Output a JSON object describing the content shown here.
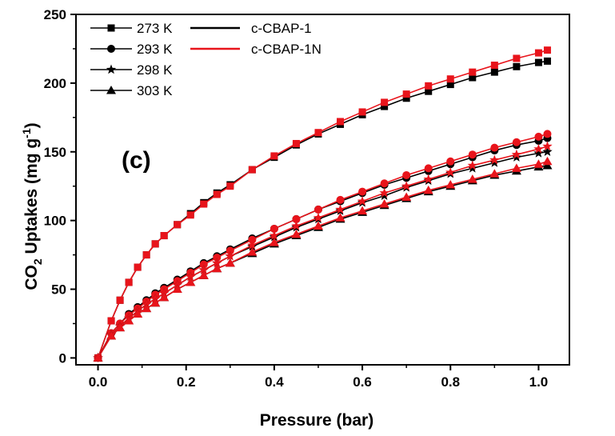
{
  "chart_data": {
    "type": "line",
    "title": "",
    "panel_label": "(c)",
    "xlabel": "Pressure (bar)",
    "ylabel_main": "CO",
    "ylabel_sub": "2",
    "ylabel_rest": " Uptakes (mg g",
    "ylabel_sup": "-1",
    "ylabel_end": ")",
    "xlim": [
      -0.05,
      1.07
    ],
    "ylim": [
      -5,
      250
    ],
    "xticks": [
      0.0,
      0.2,
      0.4,
      0.6,
      0.8,
      1.0
    ],
    "xtick_labels": [
      "0.0",
      "0.2",
      "0.4",
      "0.6",
      "0.8",
      "1.0"
    ],
    "yticks": [
      0,
      50,
      100,
      150,
      200,
      250
    ],
    "ytick_labels": [
      "0",
      "50",
      "100",
      "150",
      "200",
      "250"
    ],
    "legend_temperatures": [
      {
        "label": "273 K",
        "marker": "square"
      },
      {
        "label": "293 K",
        "marker": "circle"
      },
      {
        "label": "298 K",
        "marker": "star"
      },
      {
        "label": "303 K",
        "marker": "triangle"
      }
    ],
    "legend_materials": [
      {
        "label": "c-CBAP-1",
        "color": "#000000"
      },
      {
        "label": "c-CBAP-1N",
        "color": "#e8141b"
      }
    ],
    "x": [
      0.0,
      0.03,
      0.05,
      0.07,
      0.09,
      0.11,
      0.13,
      0.15,
      0.18,
      0.21,
      0.24,
      0.27,
      0.3,
      0.35,
      0.4,
      0.45,
      0.5,
      0.55,
      0.6,
      0.65,
      0.7,
      0.75,
      0.8,
      0.85,
      0.9,
      0.95,
      1.0,
      1.02
    ],
    "series": [
      {
        "name": "c-CBAP-1 273 K",
        "material": "c-CBAP-1",
        "temperature": "273 K",
        "marker": "square",
        "color": "#000000",
        "y": [
          0,
          27,
          42,
          55,
          66,
          75,
          83,
          89,
          97,
          105,
          113,
          120,
          126,
          137,
          146,
          155,
          163,
          170,
          177,
          183,
          189,
          194,
          199,
          204,
          208,
          212,
          215,
          216
        ]
      },
      {
        "name": "c-CBAP-1N 273 K",
        "material": "c-CBAP-1N",
        "temperature": "273 K",
        "marker": "square",
        "color": "#e8141b",
        "y": [
          0,
          27,
          42,
          55,
          66,
          75,
          83,
          89,
          97,
          104,
          112,
          119,
          125,
          137,
          147,
          156,
          164,
          172,
          179,
          186,
          192,
          198,
          203,
          208,
          213,
          218,
          222,
          224
        ]
      },
      {
        "name": "c-CBAP-1 293 K",
        "material": "c-CBAP-1",
        "temperature": "293 K",
        "marker": "circle",
        "color": "#000000",
        "y": [
          0,
          18,
          25,
          32,
          37,
          42,
          47,
          51,
          57,
          63,
          69,
          74,
          79,
          87,
          94,
          101,
          108,
          114,
          120,
          126,
          131,
          136,
          141,
          146,
          151,
          155,
          158,
          160
        ]
      },
      {
        "name": "c-CBAP-1N 293 K",
        "material": "c-CBAP-1N",
        "temperature": "293 K",
        "marker": "circle",
        "color": "#e8141b",
        "y": [
          0,
          18,
          25,
          31,
          36,
          41,
          46,
          50,
          56,
          62,
          68,
          73,
          78,
          86,
          94,
          101,
          108,
          115,
          121,
          127,
          133,
          138,
          143,
          148,
          153,
          157,
          161,
          163
        ]
      },
      {
        "name": "c-CBAP-1 298 K",
        "material": "c-CBAP-1",
        "temperature": "298 K",
        "marker": "star",
        "color": "#000000",
        "y": [
          0,
          17,
          23,
          29,
          34,
          39,
          43,
          47,
          53,
          59,
          64,
          69,
          74,
          81,
          88,
          95,
          101,
          107,
          113,
          118,
          124,
          129,
          134,
          138,
          142,
          146,
          149,
          150
        ]
      },
      {
        "name": "c-CBAP-1N 298 K",
        "material": "c-CBAP-1N",
        "temperature": "298 K",
        "marker": "star",
        "color": "#e8141b",
        "y": [
          0,
          17,
          23,
          29,
          34,
          39,
          43,
          47,
          53,
          59,
          64,
          69,
          74,
          82,
          89,
          96,
          102,
          108,
          114,
          120,
          125,
          130,
          135,
          140,
          144,
          148,
          152,
          154
        ]
      },
      {
        "name": "c-CBAP-1 303 K",
        "material": "c-CBAP-1",
        "temperature": "303 K",
        "marker": "triangle",
        "color": "#000000",
        "y": [
          0,
          16,
          22,
          27,
          32,
          36,
          40,
          44,
          50,
          55,
          60,
          65,
          69,
          76,
          83,
          89,
          95,
          101,
          106,
          111,
          116,
          121,
          125,
          129,
          133,
          136,
          139,
          140
        ]
      },
      {
        "name": "c-CBAP-1N 303 K",
        "material": "c-CBAP-1N",
        "temperature": "303 K",
        "marker": "triangle",
        "color": "#e8141b",
        "y": [
          0,
          16,
          22,
          27,
          32,
          36,
          40,
          44,
          50,
          55,
          60,
          65,
          69,
          77,
          84,
          90,
          96,
          102,
          107,
          112,
          117,
          122,
          126,
          130,
          134,
          138,
          141,
          143
        ]
      }
    ]
  }
}
